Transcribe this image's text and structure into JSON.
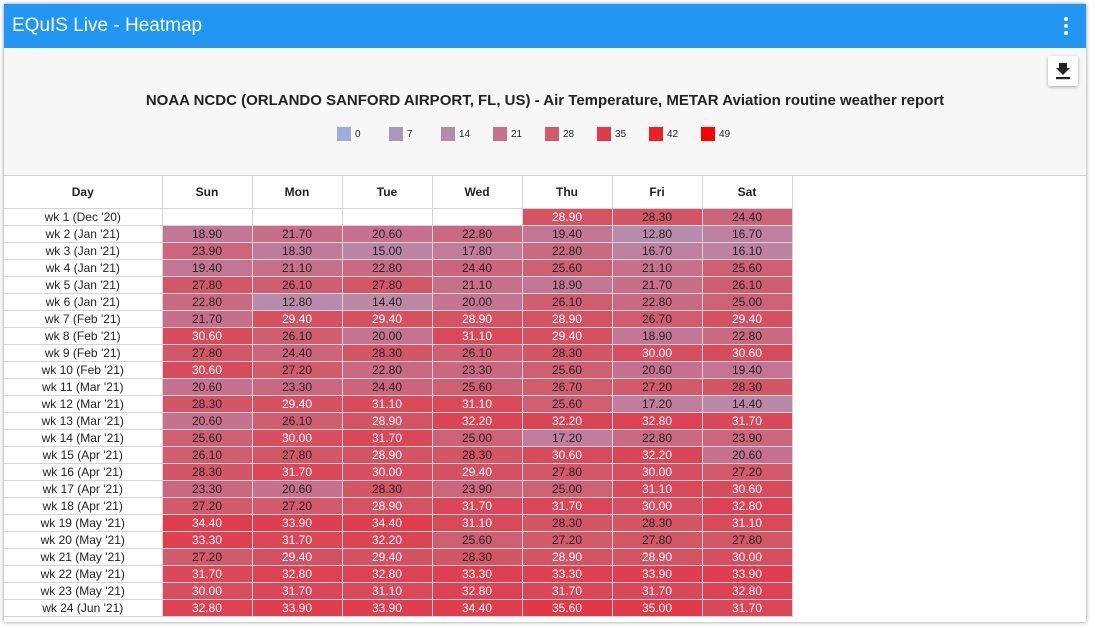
{
  "app": {
    "title": "EQuIS Live - Heatmap"
  },
  "chart_data": {
    "type": "heatmap",
    "title": "NOAA NCDC (ORLANDO SANFORD AIRPORT, FL, US) - Air Temperature, METAR Aviation routine weather report",
    "row_header": "Day",
    "columns": [
      "Sun",
      "Mon",
      "Tue",
      "Wed",
      "Thu",
      "Fri",
      "Sat"
    ],
    "legend": [
      {
        "label": "0",
        "color": "#9aaed6"
      },
      {
        "label": "7",
        "color": "#aa98bf"
      },
      {
        "label": "14",
        "color": "#b88aa8"
      },
      {
        "label": "21",
        "color": "#c6708d"
      },
      {
        "label": "28",
        "color": "#d25767"
      },
      {
        "label": "35",
        "color": "#e0394a"
      },
      {
        "label": "42",
        "color": "#ec202a"
      },
      {
        "label": "49",
        "color": "#ff0000"
      }
    ],
    "rows": [
      {
        "label": "wk 1 (Dec '20)",
        "values": [
          null,
          null,
          null,
          null,
          "28.90",
          "28.30",
          "24.40"
        ]
      },
      {
        "label": "wk 2 (Jan '21)",
        "values": [
          "18.90",
          "21.70",
          "20.60",
          "22.80",
          "19.40",
          "12.80",
          "16.70"
        ]
      },
      {
        "label": "wk 3 (Jan '21)",
        "values": [
          "23.90",
          "18.30",
          "15.00",
          "17.80",
          "22.80",
          "16.70",
          "16.10"
        ]
      },
      {
        "label": "wk 4 (Jan '21)",
        "values": [
          "19.40",
          "21.10",
          "22.80",
          "24.40",
          "25.60",
          "21.10",
          "25.60"
        ]
      },
      {
        "label": "wk 5 (Jan '21)",
        "values": [
          "27.80",
          "26.10",
          "27.80",
          "21.10",
          "18.90",
          "21.70",
          "26.10"
        ]
      },
      {
        "label": "wk 6 (Jan '21)",
        "values": [
          "22.80",
          "12.80",
          "14.40",
          "20.00",
          "26.10",
          "22.80",
          "25.00"
        ]
      },
      {
        "label": "wk 7 (Feb '21)",
        "values": [
          "21.70",
          "29.40",
          "29.40",
          "28.90",
          "28.90",
          "26.70",
          "29.40"
        ]
      },
      {
        "label": "wk 8 (Feb '21)",
        "values": [
          "30.60",
          "26.10",
          "20.00",
          "31.10",
          "29.40",
          "18.90",
          "22.80"
        ]
      },
      {
        "label": "wk 9 (Feb '21)",
        "values": [
          "27.80",
          "24.40",
          "28.30",
          "26.10",
          "28.30",
          "30.00",
          "30.60"
        ]
      },
      {
        "label": "wk 10 (Feb '21)",
        "values": [
          "30.60",
          "27.20",
          "22.80",
          "23.30",
          "25.60",
          "20.60",
          "19.40"
        ]
      },
      {
        "label": "wk 11 (Mar '21)",
        "values": [
          "20.60",
          "23.30",
          "24.40",
          "25.60",
          "26.70",
          "27.20",
          "28.30"
        ]
      },
      {
        "label": "wk 12 (Mar '21)",
        "values": [
          "28.30",
          "29.40",
          "31.10",
          "31.10",
          "25.60",
          "17.20",
          "14.40"
        ]
      },
      {
        "label": "wk 13 (Mar '21)",
        "values": [
          "20.60",
          "26.10",
          "28.90",
          "32.20",
          "32.20",
          "32.80",
          "31.70"
        ]
      },
      {
        "label": "wk 14 (Mar '21)",
        "values": [
          "25.60",
          "30.00",
          "31.70",
          "25.00",
          "17.20",
          "22.80",
          "23.90"
        ]
      },
      {
        "label": "wk 15 (Apr '21)",
        "values": [
          "26.10",
          "27.80",
          "28.90",
          "28.30",
          "30.60",
          "32.20",
          "20.60"
        ]
      },
      {
        "label": "wk 16 (Apr '21)",
        "values": [
          "28.30",
          "31.70",
          "30.00",
          "29.40",
          "27.80",
          "30.00",
          "27.20"
        ]
      },
      {
        "label": "wk 17 (Apr '21)",
        "values": [
          "23.30",
          "20.60",
          "28.30",
          "23.90",
          "25.00",
          "31.10",
          "30.60"
        ]
      },
      {
        "label": "wk 18 (Apr '21)",
        "values": [
          "27.20",
          "27.20",
          "28.90",
          "31.70",
          "31.70",
          "30.00",
          "32.80"
        ]
      },
      {
        "label": "wk 19 (May '21)",
        "values": [
          "34.40",
          "33.90",
          "34.40",
          "31.10",
          "28.30",
          "28.30",
          "31.10"
        ]
      },
      {
        "label": "wk 20 (May '21)",
        "values": [
          "33.30",
          "31.70",
          "32.20",
          "25.60",
          "27.20",
          "27.80",
          "27.80"
        ]
      },
      {
        "label": "wk 21 (May '21)",
        "values": [
          "27.20",
          "29.40",
          "29.40",
          "28.30",
          "28.90",
          "28.90",
          "30.00"
        ]
      },
      {
        "label": "wk 22 (May '21)",
        "values": [
          "31.70",
          "32.80",
          "32.80",
          "33.30",
          "33.30",
          "33.90",
          "33.90"
        ]
      },
      {
        "label": "wk 23 (May '21)",
        "values": [
          "30.00",
          "31.70",
          "31.10",
          "32.80",
          "31.70",
          "31.70",
          "32.80"
        ]
      },
      {
        "label": "wk 24 (Jun '21)",
        "values": [
          "32.80",
          "33.90",
          "33.90",
          "34.40",
          "35.60",
          "35.00",
          "31.70"
        ]
      }
    ]
  }
}
